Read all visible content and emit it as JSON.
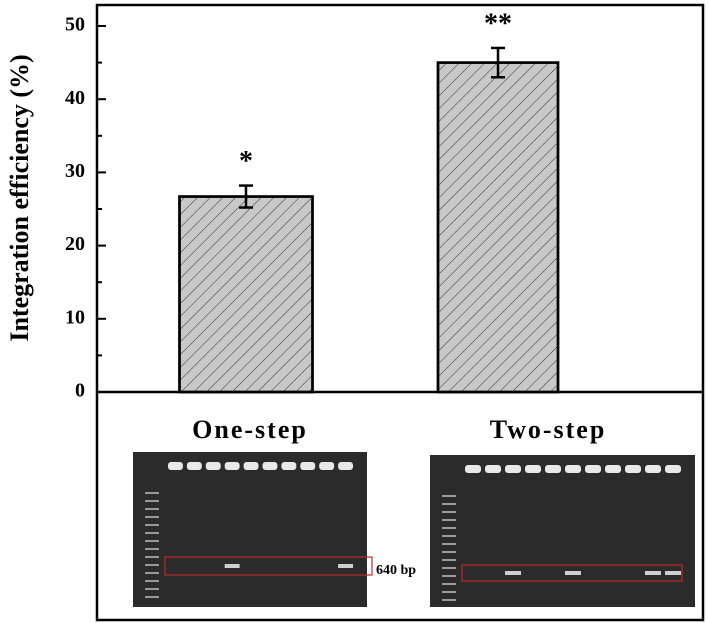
{
  "chart_data": {
    "type": "bar",
    "y_label": "Integration efficiency (%)",
    "categories": [
      "One-step",
      "Two-step"
    ],
    "values": [
      26.7,
      45
    ],
    "errors": [
      1.5,
      2
    ],
    "annotations": [
      "*",
      "**"
    ],
    "color": "#c8c8c8",
    "hatch": true,
    "ylim": [
      0,
      50
    ],
    "yticks": [
      0,
      10,
      20,
      30,
      40,
      50
    ],
    "gel_label": "640 bp"
  }
}
